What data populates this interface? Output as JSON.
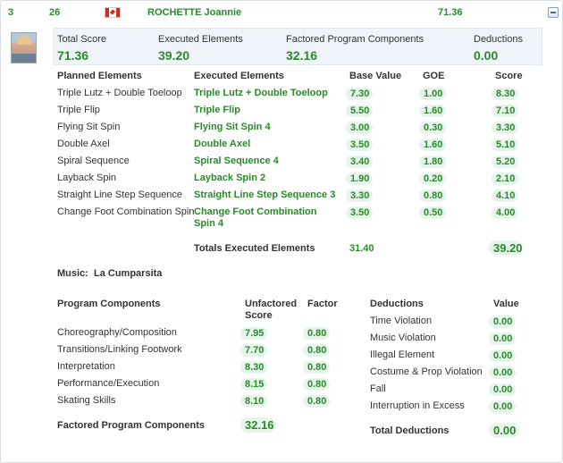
{
  "header": {
    "rank": "3",
    "start_no": "26",
    "name": "ROCHETTE Joannie",
    "score": "71.36"
  },
  "summary": {
    "total_score_label": "Total Score",
    "total_score": "71.36",
    "tes_label": "Executed Elements",
    "tes": "39.20",
    "pcs_label": "Factored Program Components",
    "pcs": "32.16",
    "ded_label": "Deductions",
    "ded": "0.00"
  },
  "elements": {
    "col_planned": "Planned Elements",
    "col_executed": "Executed Elements",
    "col_base": "Base Value",
    "col_goe": "GOE",
    "col_score": "Score",
    "rows": [
      {
        "planned": "Triple Lutz + Double Toeloop",
        "executed": "Triple Lutz + Double Toeloop",
        "base": "7.30",
        "goe": "1.00",
        "score": "8.30"
      },
      {
        "planned": "Triple Flip",
        "executed": "Triple Flip",
        "base": "5.50",
        "goe": "1.60",
        "score": "7.10"
      },
      {
        "planned": "Flying Sit Spin",
        "executed": "Flying Sit Spin 4",
        "base": "3.00",
        "goe": "0.30",
        "score": "3.30"
      },
      {
        "planned": "Double Axel",
        "executed": "Double Axel",
        "base": "3.50",
        "goe": "1.60",
        "score": "5.10"
      },
      {
        "planned": "Spiral Sequence",
        "executed": "Spiral Sequence 4",
        "base": "3.40",
        "goe": "1.80",
        "score": "5.20"
      },
      {
        "planned": "Layback Spin",
        "executed": "Layback Spin 2",
        "base": "1.90",
        "goe": "0.20",
        "score": "2.10"
      },
      {
        "planned": "Straight Line Step Sequence",
        "executed": "Straight Line Step Sequence 3",
        "base": "3.30",
        "goe": "0.80",
        "score": "4.10"
      },
      {
        "planned": "Change Foot Combination Spin",
        "executed": "Change Foot Combination",
        "executed2": "Spin 4",
        "base": "3.50",
        "goe": "0.50",
        "score": "4.00"
      }
    ],
    "total_label": "Totals Executed Elements",
    "total_base": "31.40",
    "total_score": "39.20"
  },
  "music": {
    "label": "Music:",
    "title": "La Cumparsita"
  },
  "components": {
    "col_name": "Program Components",
    "col_unfactored": "Unfactored",
    "col_unfactored2": "Score",
    "col_factor": "Factor",
    "rows": [
      {
        "name": "Choreography/Composition",
        "score": "7.95",
        "factor": "0.80"
      },
      {
        "name": "Transitions/Linking Footwork",
        "score": "7.70",
        "factor": "0.80"
      },
      {
        "name": "Interpretation",
        "score": "8.30",
        "factor": "0.80"
      },
      {
        "name": "Performance/Execution",
        "score": "8.15",
        "factor": "0.80"
      },
      {
        "name": "Skating Skills",
        "score": "8.10",
        "factor": "0.80"
      }
    ],
    "total_label": "Factored Program Components",
    "total": "32.16"
  },
  "deductions": {
    "col_name": "Deductions",
    "col_value": "Value",
    "rows": [
      {
        "name": "Time Violation",
        "value": "0.00"
      },
      {
        "name": "Music Violation",
        "value": "0.00"
      },
      {
        "name": "Illegal Element",
        "value": "0.00"
      },
      {
        "name": "Costume & Prop Violation",
        "value": "0.00"
      },
      {
        "name": "Fall",
        "value": "0.00"
      },
      {
        "name": "Interruption in Excess",
        "value": "0.00"
      }
    ],
    "total_label": "Total Deductions",
    "total": "0.00"
  }
}
